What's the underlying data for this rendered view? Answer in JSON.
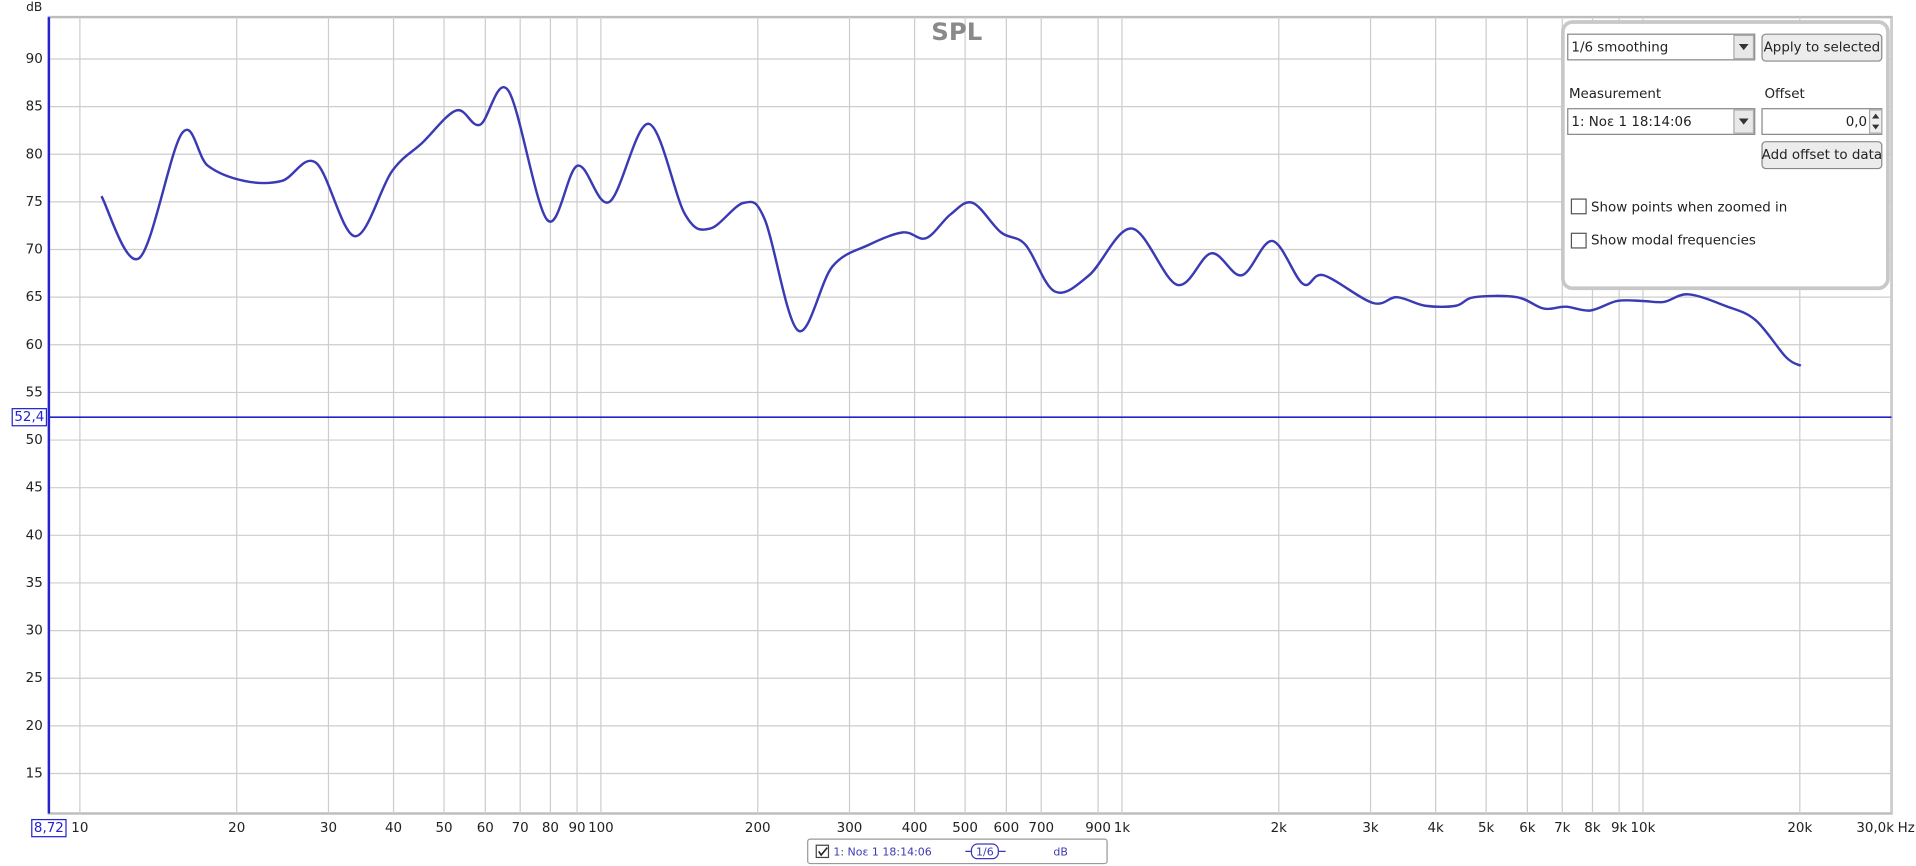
{
  "chart_data": {
    "type": "line",
    "title": "SPL",
    "y_label": "dB",
    "x_label": "Hz",
    "xscale": "log",
    "grid": true,
    "xlim": [
      8.72,
      30000
    ],
    "ylim": [
      10.8,
      94.4
    ],
    "xticks": [
      10,
      20,
      30,
      40,
      50,
      60,
      70,
      80,
      90,
      100,
      200,
      300,
      400,
      500,
      600,
      700,
      900,
      {
        "value": 1000,
        "label": "1k"
      },
      {
        "value": 2000,
        "label": "2k"
      },
      {
        "value": 3000,
        "label": "3k"
      },
      {
        "value": 4000,
        "label": "4k"
      },
      {
        "value": 5000,
        "label": "5k"
      },
      {
        "value": 6000,
        "label": "6k"
      },
      {
        "value": 7000,
        "label": "7k"
      },
      {
        "value": 8000,
        "label": "8k"
      },
      {
        "value": 9000,
        "label": "9k"
      },
      {
        "value": 10000,
        "label": "10k"
      },
      {
        "value": 20000,
        "label": "20k"
      },
      {
        "value": 30000,
        "label": "30,0k"
      }
    ],
    "yticks": [
      15,
      20,
      25,
      30,
      35,
      40,
      45,
      50,
      55,
      60,
      65,
      70,
      75,
      80,
      85,
      90
    ],
    "cursor": {
      "x": 8.72,
      "x_label": "8,72",
      "y": 52.4,
      "y_label": "52,4",
      "color": "#2323d2"
    },
    "series": [
      {
        "name": "1: Noε 1 18:14:06",
        "color": "#3a3ab4",
        "x": [
          11,
          13,
          15.7,
          17.6,
          20.7,
          24.4,
          28.4,
          33.7,
          39.7,
          45.4,
          52.8,
          58.6,
          66.4,
          78.9,
          90.2,
          103.8,
          123.5,
          145,
          162,
          188,
          206.5,
          239,
          278,
          327,
          380,
          421,
          469,
          517,
          586,
          653,
          743,
          865,
          1045,
          1276,
          1484,
          1698,
          1944,
          2225,
          2438,
          3027,
          3373,
          3819,
          4374,
          4745,
          5730,
          6451,
          7110,
          7925,
          8925,
          10000,
          10964,
          12220,
          14370,
          16440,
          18820,
          20090
        ],
        "values": [
          75.6,
          69.1,
          82.2,
          78.8,
          77.2,
          77.2,
          79.1,
          71.4,
          78.2,
          81.2,
          84.6,
          83.1,
          86.7,
          73.1,
          78.8,
          75.0,
          83.2,
          73.7,
          72.2,
          74.9,
          73.1,
          61.5,
          68.2,
          70.5,
          71.8,
          71.2,
          73.7,
          74.9,
          71.8,
          70.5,
          65.6,
          67.3,
          72.2,
          66.3,
          69.6,
          67.3,
          70.9,
          66.4,
          67.3,
          64.4,
          65.0,
          64.1,
          64.1,
          65.0,
          65.0,
          63.8,
          64.0,
          63.6,
          64.6,
          64.6,
          64.5,
          65.3,
          64.1,
          62.6,
          58.7,
          57.8
        ]
      }
    ]
  },
  "controls": {
    "smoothing": "1/6 smoothing",
    "apply_button": "Apply to selected",
    "measurement_label": "Measurement",
    "measurement": "1: Noε 1 18:14:06",
    "offset_label": "Offset",
    "offset_value": "0,0",
    "offset_button": "Add offset to data",
    "checkboxes": [
      "Show points when zoomed in",
      "Show modal frequencies"
    ]
  },
  "legend": {
    "smoothing": "1/6"
  }
}
